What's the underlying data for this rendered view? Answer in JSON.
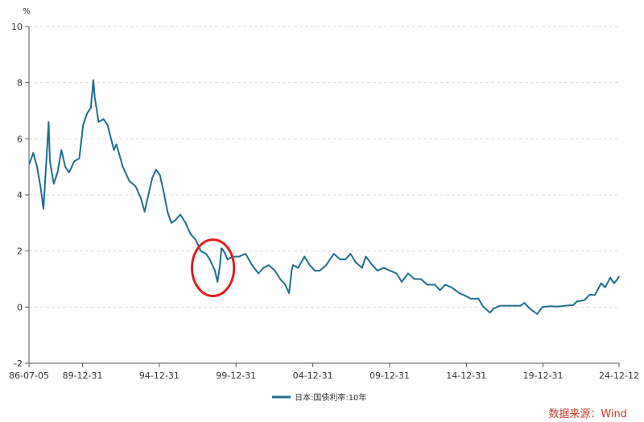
{
  "chart_data": {
    "type": "line",
    "ylabel": "%",
    "ylim": [
      -2,
      10
    ],
    "yticks": [
      -2,
      0,
      2,
      4,
      6,
      8,
      10
    ],
    "x_tick_labels": [
      "86-07-05",
      "89-12-31",
      "94-12-31",
      "99-12-31",
      "04-12-31",
      "09-12-31",
      "14-12-31",
      "19-12-31",
      "24-12-12"
    ],
    "x_range": [
      "1986-07-05",
      "2024-12-12"
    ],
    "grid": "horizontal dashed",
    "legend_position": "bottom-center",
    "series": [
      {
        "name": "日本:国债利率:10年",
        "color": "#1f6e8c",
        "points": [
          [
            "1986-07",
            5.1
          ],
          [
            "1986-10",
            5.5
          ],
          [
            "1987-01",
            5.0
          ],
          [
            "1987-04",
            4.2
          ],
          [
            "1987-06",
            3.5
          ],
          [
            "1987-09",
            5.8
          ],
          [
            "1987-10",
            6.6
          ],
          [
            "1987-11",
            5.2
          ],
          [
            "1988-02",
            4.4
          ],
          [
            "1988-05",
            4.8
          ],
          [
            "1988-08",
            5.6
          ],
          [
            "1988-11",
            5.0
          ],
          [
            "1989-02",
            4.8
          ],
          [
            "1989-06",
            5.2
          ],
          [
            "1989-10",
            5.3
          ],
          [
            "1990-01",
            6.5
          ],
          [
            "1990-04",
            6.9
          ],
          [
            "1990-07",
            7.1
          ],
          [
            "1990-09",
            8.1
          ],
          [
            "1990-10",
            7.5
          ],
          [
            "1991-01",
            6.6
          ],
          [
            "1991-05",
            6.7
          ],
          [
            "1991-08",
            6.5
          ],
          [
            "1992-01",
            5.6
          ],
          [
            "1992-03",
            5.8
          ],
          [
            "1992-08",
            5.0
          ],
          [
            "1993-01",
            4.5
          ],
          [
            "1993-06",
            4.3
          ],
          [
            "1993-10",
            3.9
          ],
          [
            "1994-01",
            3.4
          ],
          [
            "1994-04",
            4.0
          ],
          [
            "1994-07",
            4.6
          ],
          [
            "1994-10",
            4.9
          ],
          [
            "1995-01",
            4.7
          ],
          [
            "1995-04",
            4.1
          ],
          [
            "1995-07",
            3.4
          ],
          [
            "1995-10",
            3.0
          ],
          [
            "1996-01",
            3.1
          ],
          [
            "1996-05",
            3.3
          ],
          [
            "1996-09",
            3.0
          ],
          [
            "1997-01",
            2.6
          ],
          [
            "1997-05",
            2.4
          ],
          [
            "1997-09",
            2.0
          ],
          [
            "1998-01",
            1.9
          ],
          [
            "1998-04",
            1.7
          ],
          [
            "1998-08",
            1.3
          ],
          [
            "1998-10",
            0.9
          ],
          [
            "1998-12",
            1.5
          ],
          [
            "1999-01",
            2.1
          ],
          [
            "1999-03",
            2.0
          ],
          [
            "1999-06",
            1.7
          ],
          [
            "1999-10",
            1.8
          ],
          [
            "2000-03",
            1.8
          ],
          [
            "2000-08",
            1.9
          ],
          [
            "2001-01",
            1.5
          ],
          [
            "2001-06",
            1.2
          ],
          [
            "2001-10",
            1.4
          ],
          [
            "2002-02",
            1.5
          ],
          [
            "2002-07",
            1.3
          ],
          [
            "2002-11",
            1.0
          ],
          [
            "2003-03",
            0.8
          ],
          [
            "2003-06",
            0.5
          ],
          [
            "2003-08",
            1.3
          ],
          [
            "2003-09",
            1.5
          ],
          [
            "2004-01",
            1.4
          ],
          [
            "2004-06",
            1.8
          ],
          [
            "2004-10",
            1.5
          ],
          [
            "2005-02",
            1.3
          ],
          [
            "2005-06",
            1.3
          ],
          [
            "2005-11",
            1.5
          ],
          [
            "2006-05",
            1.9
          ],
          [
            "2006-10",
            1.7
          ],
          [
            "2007-02",
            1.7
          ],
          [
            "2007-06",
            1.9
          ],
          [
            "2007-10",
            1.6
          ],
          [
            "2008-03",
            1.4
          ],
          [
            "2008-06",
            1.8
          ],
          [
            "2008-11",
            1.5
          ],
          [
            "2009-03",
            1.3
          ],
          [
            "2009-08",
            1.4
          ],
          [
            "2010-01",
            1.3
          ],
          [
            "2010-06",
            1.2
          ],
          [
            "2010-10",
            0.9
          ],
          [
            "2011-03",
            1.2
          ],
          [
            "2011-08",
            1.0
          ],
          [
            "2012-01",
            1.0
          ],
          [
            "2012-06",
            0.8
          ],
          [
            "2012-12",
            0.8
          ],
          [
            "2013-04",
            0.6
          ],
          [
            "2013-08",
            0.8
          ],
          [
            "2014-01",
            0.7
          ],
          [
            "2014-07",
            0.5
          ],
          [
            "2014-12",
            0.4
          ],
          [
            "2015-04",
            0.3
          ],
          [
            "2015-10",
            0.3
          ],
          [
            "2016-02",
            0.0
          ],
          [
            "2016-07",
            -0.2
          ],
          [
            "2016-10",
            -0.05
          ],
          [
            "2017-03",
            0.05
          ],
          [
            "2017-09",
            0.05
          ],
          [
            "2018-02",
            0.05
          ],
          [
            "2018-07",
            0.05
          ],
          [
            "2018-10",
            0.15
          ],
          [
            "2019-02",
            -0.05
          ],
          [
            "2019-08",
            -0.25
          ],
          [
            "2019-12",
            0.0
          ],
          [
            "2020-06",
            0.03
          ],
          [
            "2020-12",
            0.02
          ],
          [
            "2021-06",
            0.05
          ],
          [
            "2021-12",
            0.07
          ],
          [
            "2022-03",
            0.2
          ],
          [
            "2022-09",
            0.25
          ],
          [
            "2023-01",
            0.45
          ],
          [
            "2023-05",
            0.43
          ],
          [
            "2023-10",
            0.85
          ],
          [
            "2024-01",
            0.7
          ],
          [
            "2024-05",
            1.05
          ],
          [
            "2024-08",
            0.85
          ],
          [
            "2024-10",
            0.95
          ],
          [
            "2024-12",
            1.1
          ]
        ]
      }
    ],
    "annotation": {
      "type": "red-ellipse",
      "around_period": [
        "1997-09",
        "1999-04"
      ]
    }
  },
  "source_note": "数据来源：Wind"
}
